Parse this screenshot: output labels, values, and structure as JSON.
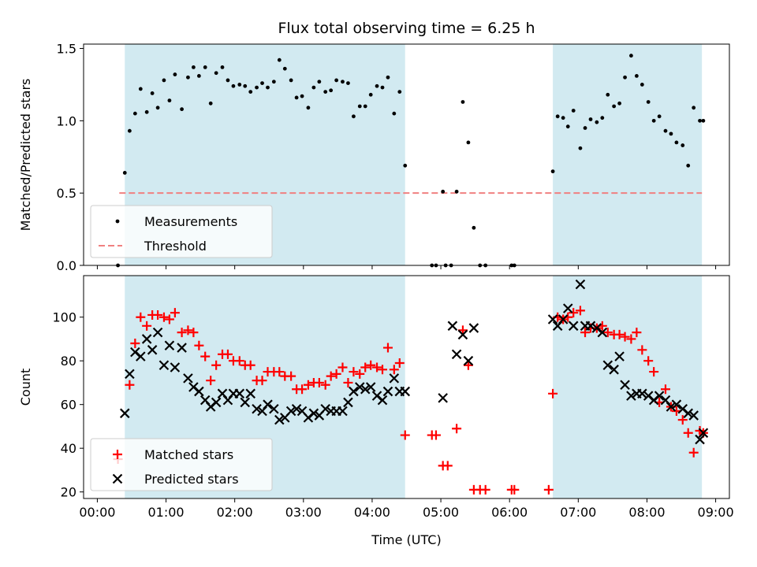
{
  "chart_data": [
    {
      "type": "scatter",
      "title": "Flux total observing time = 6.25 h",
      "ylabel": "Matched/Predicted stars",
      "xlabel": "",
      "xlim": [
        -0.2,
        9.2
      ],
      "ylim": [
        0,
        1.53
      ],
      "x_ticks": [
        0,
        1,
        2,
        3,
        4,
        5,
        6,
        7,
        8,
        9
      ],
      "y_ticks": [
        0.0,
        0.5,
        1.0,
        1.5
      ],
      "y_tick_labels": [
        "0.0",
        "0.5",
        "1.0",
        "1.5"
      ],
      "shaded_spans": [
        [
          0.4,
          4.48
        ],
        [
          6.63,
          8.8
        ]
      ],
      "shade_color": "#add8e6",
      "threshold": {
        "name": "Threshold",
        "value": 0.5,
        "x_range": [
          0.32,
          8.8
        ],
        "color": "#f08080"
      },
      "legend": {
        "position": "lower-left",
        "entries": [
          "Measurements",
          "Threshold"
        ]
      },
      "series": [
        {
          "name": "Measurements",
          "marker": "dot",
          "color": "#000000",
          "x": [
            0.3,
            0.4,
            0.47,
            0.55,
            0.63,
            0.72,
            0.8,
            0.88,
            0.97,
            1.05,
            1.13,
            1.23,
            1.32,
            1.4,
            1.48,
            1.57,
            1.65,
            1.73,
            1.82,
            1.9,
            1.98,
            2.07,
            2.15,
            2.23,
            2.32,
            2.4,
            2.48,
            2.57,
            2.65,
            2.73,
            2.82,
            2.9,
            2.98,
            3.07,
            3.15,
            3.23,
            3.32,
            3.4,
            3.48,
            3.57,
            3.65,
            3.73,
            3.82,
            3.9,
            3.98,
            4.07,
            4.15,
            4.23,
            4.32,
            4.4,
            4.48,
            4.87,
            4.93,
            5.03,
            5.07,
            5.15,
            5.23,
            5.32,
            5.4,
            5.48,
            5.57,
            5.65,
            6.03,
            6.07,
            6.63,
            6.7,
            6.78,
            6.85,
            6.93,
            7.03,
            7.1,
            7.18,
            7.27,
            7.35,
            7.43,
            7.52,
            7.6,
            7.68,
            7.77,
            7.85,
            7.93,
            8.02,
            8.1,
            8.18,
            8.27,
            8.35,
            8.43,
            8.52,
            8.6,
            8.68,
            8.77,
            8.82
          ],
          "y": [
            0.0,
            0.64,
            0.93,
            1.05,
            1.22,
            1.06,
            1.19,
            1.09,
            1.28,
            1.14,
            1.32,
            1.08,
            1.3,
            1.37,
            1.31,
            1.37,
            1.12,
            1.33,
            1.37,
            1.28,
            1.24,
            1.25,
            1.24,
            1.2,
            1.23,
            1.26,
            1.23,
            1.27,
            1.42,
            1.36,
            1.28,
            1.16,
            1.17,
            1.09,
            1.23,
            1.27,
            1.2,
            1.21,
            1.28,
            1.27,
            1.26,
            1.03,
            1.1,
            1.1,
            1.18,
            1.24,
            1.23,
            1.3,
            1.05,
            1.2,
            0.69,
            0.0,
            0.0,
            0.51,
            0.0,
            0.0,
            0.51,
            1.13,
            0.85,
            0.26,
            0.0,
            0.0,
            0.0,
            0.0,
            0.65,
            1.03,
            1.02,
            0.96,
            1.07,
            0.81,
            0.95,
            1.01,
            0.99,
            1.02,
            1.18,
            1.1,
            1.12,
            1.3,
            1.45,
            1.31,
            1.25,
            1.13,
            1.0,
            1.03,
            0.93,
            0.91,
            0.85,
            0.83,
            0.69,
            1.09,
            1.0,
            1.0
          ]
        }
      ]
    },
    {
      "type": "scatter",
      "title": "",
      "ylabel": "Count",
      "xlabel": "Time (UTC)",
      "xlim": [
        -0.2,
        9.2
      ],
      "ylim": [
        17,
        119
      ],
      "x_ticks": [
        0,
        1,
        2,
        3,
        4,
        5,
        6,
        7,
        8,
        9
      ],
      "x_tick_labels": [
        "00:00",
        "01:00",
        "02:00",
        "03:00",
        "04:00",
        "05:00",
        "06:00",
        "07:00",
        "08:00",
        "09:00"
      ],
      "y_ticks": [
        20,
        40,
        60,
        80,
        100
      ],
      "y_tick_labels": [
        "20",
        "40",
        "60",
        "80",
        "100"
      ],
      "shaded_spans": [
        [
          0.4,
          4.48
        ],
        [
          6.63,
          8.8
        ]
      ],
      "shade_color": "#add8e6",
      "legend": {
        "position": "lower-left",
        "entries": [
          "Matched stars",
          "Predicted stars"
        ]
      },
      "series": [
        {
          "name": "Matched stars",
          "marker": "plus",
          "color": "#ff0000",
          "x": [
            0.3,
            0.47,
            0.55,
            0.63,
            0.72,
            0.8,
            0.88,
            0.97,
            1.05,
            1.13,
            1.23,
            1.32,
            1.4,
            1.48,
            1.57,
            1.65,
            1.73,
            1.82,
            1.9,
            1.98,
            2.07,
            2.15,
            2.23,
            2.32,
            2.4,
            2.48,
            2.57,
            2.65,
            2.73,
            2.82,
            2.9,
            2.98,
            3.07,
            3.15,
            3.23,
            3.32,
            3.4,
            3.48,
            3.57,
            3.65,
            3.73,
            3.82,
            3.9,
            3.98,
            4.07,
            4.15,
            4.23,
            4.32,
            4.4,
            4.48,
            4.87,
            4.93,
            5.03,
            5.1,
            5.23,
            5.32,
            5.4,
            5.48,
            5.57,
            5.65,
            6.03,
            6.07,
            6.57,
            6.63,
            6.7,
            6.78,
            6.85,
            6.93,
            7.03,
            7.1,
            7.18,
            7.27,
            7.35,
            7.43,
            7.52,
            7.6,
            7.68,
            7.77,
            7.85,
            7.93,
            8.02,
            8.1,
            8.18,
            8.27,
            8.35,
            8.43,
            8.52,
            8.6,
            8.68,
            8.77,
            8.82
          ],
          "y": [
            35,
            69,
            88,
            100,
            96,
            101,
            101,
            100,
            99,
            102,
            93,
            94,
            93,
            87,
            82,
            71,
            78,
            83,
            83,
            80,
            80,
            78,
            78,
            71,
            71,
            75,
            75,
            75,
            73,
            73,
            67,
            67,
            69,
            70,
            70,
            69,
            73,
            74,
            77,
            70,
            75,
            74,
            77,
            78,
            77,
            76,
            86,
            76,
            79,
            46,
            46,
            46,
            32,
            32,
            49,
            94,
            78,
            21,
            21,
            21,
            21,
            21,
            21,
            65,
            100,
            99,
            100,
            102,
            103,
            93,
            95,
            95,
            96,
            93,
            92,
            92,
            91,
            90,
            93,
            85,
            80,
            75,
            61,
            67,
            59,
            57,
            53,
            47,
            38,
            48,
            47
          ]
        },
        {
          "name": "Predicted stars",
          "marker": "x",
          "color": "#000000",
          "x": [
            0.4,
            0.47,
            0.55,
            0.63,
            0.72,
            0.8,
            0.88,
            0.97,
            1.05,
            1.13,
            1.23,
            1.32,
            1.4,
            1.48,
            1.57,
            1.65,
            1.73,
            1.82,
            1.9,
            1.98,
            2.07,
            2.15,
            2.23,
            2.32,
            2.4,
            2.48,
            2.57,
            2.65,
            2.73,
            2.82,
            2.9,
            2.98,
            3.07,
            3.15,
            3.23,
            3.32,
            3.4,
            3.48,
            3.57,
            3.65,
            3.73,
            3.82,
            3.9,
            3.98,
            4.07,
            4.15,
            4.23,
            4.32,
            4.4,
            4.48,
            5.03,
            5.17,
            5.23,
            5.32,
            5.4,
            5.48,
            6.63,
            6.7,
            6.78,
            6.85,
            6.93,
            7.03,
            7.1,
            7.18,
            7.27,
            7.35,
            7.43,
            7.52,
            7.6,
            7.68,
            7.77,
            7.85,
            7.93,
            8.02,
            8.1,
            8.18,
            8.27,
            8.35,
            8.43,
            8.52,
            8.6,
            8.68,
            8.77,
            8.82
          ],
          "y": [
            56,
            74,
            84,
            82,
            90,
            85,
            93,
            78,
            87,
            77,
            86,
            72,
            68,
            66,
            62,
            59,
            61,
            65,
            62,
            65,
            65,
            61,
            65,
            58,
            57,
            60,
            58,
            53,
            54,
            57,
            58,
            57,
            54,
            56,
            55,
            58,
            57,
            57,
            57,
            61,
            66,
            68,
            67,
            68,
            64,
            62,
            66,
            72,
            66,
            66,
            63,
            96,
            83,
            92,
            80,
            95,
            99,
            96,
            99,
            104,
            96,
            115,
            96,
            96,
            95,
            93,
            78,
            76,
            82,
            69,
            64,
            65,
            65,
            64,
            62,
            64,
            62,
            59,
            60,
            58,
            56,
            55,
            44,
            47
          ]
        }
      ]
    }
  ]
}
